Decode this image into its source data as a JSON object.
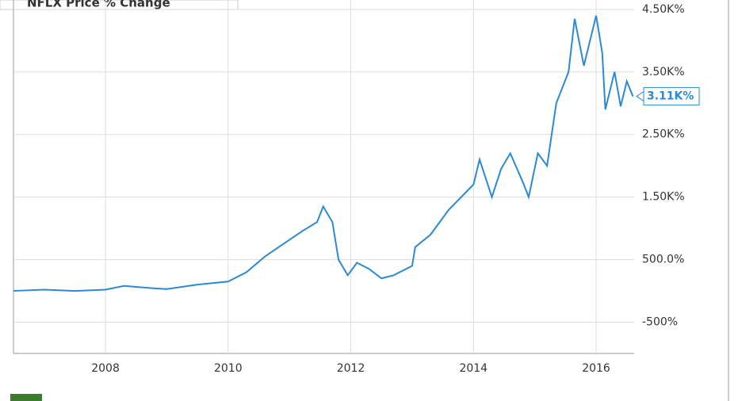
{
  "chart_data": {
    "type": "line",
    "title": "NFLX Price % Change",
    "x": [
      2006.5,
      2007.0,
      2007.5,
      2008.0,
      2008.3,
      2008.8,
      2009.0,
      2009.5,
      2010.0,
      2010.3,
      2010.6,
      2010.9,
      2011.2,
      2011.45,
      2011.55,
      2011.7,
      2011.8,
      2011.95,
      2012.1,
      2012.3,
      2012.5,
      2012.7,
      2012.9,
      2013.0,
      2013.05,
      2013.3,
      2013.6,
      2014.0,
      2014.1,
      2014.3,
      2014.45,
      2014.6,
      2014.8,
      2014.9,
      2015.05,
      2015.2,
      2015.35,
      2015.55,
      2015.65,
      2015.8,
      2016.0,
      2016.1,
      2016.15,
      2016.3,
      2016.4,
      2016.5,
      2016.6
    ],
    "series": [
      {
        "name": "NFLX Price % Change",
        "color": "#2a8ad8",
        "values": [
          0,
          20,
          0,
          20,
          80,
          40,
          30,
          100,
          150,
          300,
          550,
          750,
          950,
          1100,
          1350,
          1100,
          500,
          250,
          450,
          350,
          200,
          250,
          350,
          400,
          700,
          900,
          1300,
          1700,
          2100,
          1500,
          1950,
          2200,
          1750,
          1500,
          2200,
          2000,
          3000,
          3500,
          4350,
          3600,
          4400,
          3800,
          2900,
          3500,
          2950,
          3350,
          3110
        ],
        "value_labels": [
          null,
          null,
          null,
          null,
          null,
          null,
          null,
          null,
          null,
          null,
          null,
          null,
          null,
          null,
          null,
          null,
          null,
          null,
          null,
          null,
          null,
          null,
          null,
          null,
          null,
          null,
          null,
          null,
          null,
          null,
          null,
          null,
          null,
          null,
          null,
          null,
          null,
          null,
          null,
          null,
          null,
          null,
          null,
          null,
          null,
          null,
          "3.11K%"
        ]
      }
    ],
    "xlim": [
      2006.5,
      2016.62
    ],
    "xticks": [
      2008,
      2010,
      2012,
      2014,
      2016
    ],
    "ylim": [
      -1000,
      4650
    ],
    "yticks": [
      {
        "value": -500,
        "label": "-500%"
      },
      {
        "value": 500,
        "label": "500.0%"
      },
      {
        "value": 1500,
        "label": "1.50K%"
      },
      {
        "value": 2500,
        "label": "2.50K%"
      },
      {
        "value": 3500,
        "label": "3.50K%"
      },
      {
        "value": 4500,
        "label": "4.50K%"
      }
    ],
    "grid": true
  }
}
